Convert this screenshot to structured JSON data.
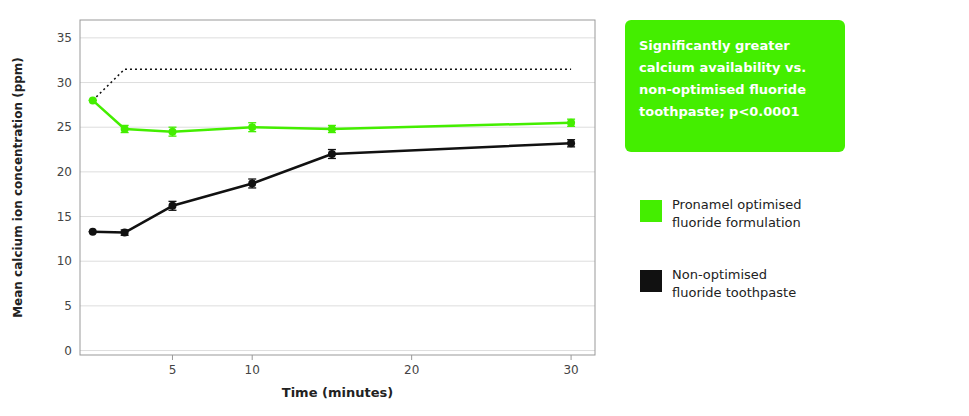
{
  "chart_data": {
    "type": "line",
    "xlabel": "Time (minutes)",
    "ylabel": "Mean calcium ion concentration (ppm)",
    "xlim": [
      -0.8,
      31.5
    ],
    "ylim": [
      -0.5,
      37
    ],
    "xticks": [
      5,
      10,
      20,
      30
    ],
    "yticks": [
      0,
      5,
      10,
      15,
      20,
      25,
      30,
      35
    ],
    "grid": true,
    "legend": "right",
    "annotation": "Significantly greater\ncalcium availability vs.\nnon-optimised fluoride\ntoothpaste; p<0.0001",
    "series": [
      {
        "color": "#111111",
        "line_style": "dotted",
        "x": [
          0,
          2,
          30
        ],
        "values": [
          28.0,
          31.5,
          31.5
        ]
      },
      {
        "name": "Pronamel optimised\nfluoride formulation",
        "color": "#44EE00",
        "marker": "circle",
        "line_style": "solid",
        "x": [
          0,
          2,
          5,
          10,
          15,
          30
        ],
        "values": [
          28.0,
          24.8,
          24.5,
          25.0,
          24.8,
          25.5
        ],
        "errors": [
          0.0,
          0.4,
          0.5,
          0.5,
          0.4,
          0.4
        ]
      },
      {
        "name": "Non-optimised\nfluoride toothpaste",
        "color": "#111111",
        "marker": "circle",
        "line_style": "solid",
        "x": [
          0,
          2,
          5,
          10,
          15,
          30
        ],
        "values": [
          13.3,
          13.2,
          16.2,
          18.7,
          22.0,
          23.2
        ],
        "errors": [
          0.0,
          0.3,
          0.5,
          0.5,
          0.5,
          0.4
        ]
      }
    ]
  }
}
